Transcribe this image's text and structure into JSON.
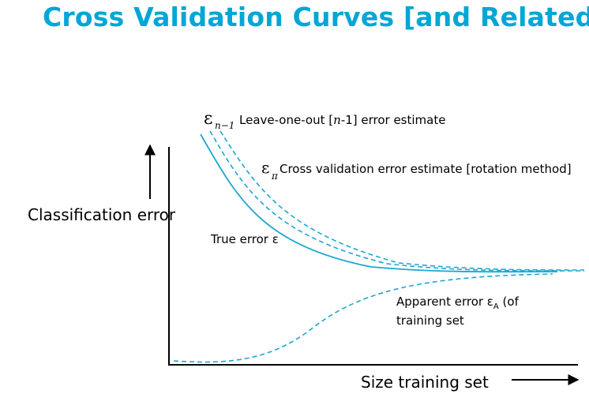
{
  "title": "Cross Validation Curves [and Related]",
  "colors": {
    "title": "#00a6d6",
    "curve": "#1ea7d0",
    "axis": "#000000"
  },
  "labels": {
    "y_axis": "Classification error",
    "x_axis": "Size training set",
    "loo_symbol": "ε",
    "loo_subscript": "n−1",
    "loo_text_before": "Leave-one-out [",
    "loo_text_n": "n",
    "loo_text_after": "-1] error estimate",
    "cv_symbol": "ε",
    "cv_subscript": "π",
    "cv_text": "Cross validation error estimate [rotation method]",
    "true_error_text": "True error ε",
    "apparent_line1_text": "Apparent error ε",
    "apparent_line1_subscript": "A",
    "apparent_line1_tail": " (of",
    "apparent_line2": "training set"
  },
  "curves": [
    {
      "name": "true error",
      "style": "solid"
    },
    {
      "name": "leave-one-out estimate",
      "style": "dashed"
    },
    {
      "name": "cross validation estimate",
      "style": "dashed"
    },
    {
      "name": "apparent error",
      "style": "dashed"
    }
  ]
}
